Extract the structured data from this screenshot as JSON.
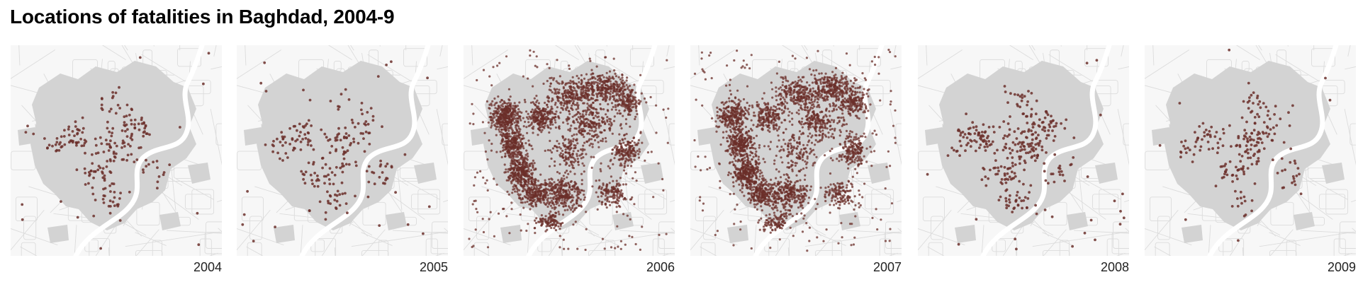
{
  "title": "Locations of fatalities in Baghdad, 2004-9",
  "colors": {
    "dot": "#6b2f2a",
    "district_fill": "#d3d3d3",
    "street": "#dcdcdc",
    "background": "#f7f7f7"
  },
  "panels": [
    {
      "year": "2004",
      "intensity": "low"
    },
    {
      "year": "2005",
      "intensity": "low"
    },
    {
      "year": "2006",
      "intensity": "very high"
    },
    {
      "year": "2007",
      "intensity": "very high"
    },
    {
      "year": "2008",
      "intensity": "low"
    },
    {
      "year": "2009",
      "intensity": "low"
    }
  ]
}
